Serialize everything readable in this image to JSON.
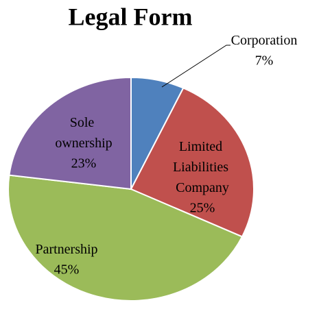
{
  "chart_data": {
    "type": "pie",
    "title": "Legal Form",
    "categories": [
      "Corporation",
      "Limited Liabilities Company",
      "Partnership",
      "Sole ownership"
    ],
    "values": [
      7,
      25,
      45,
      23
    ],
    "value_labels": [
      "7%",
      "25%",
      "45%",
      "23%"
    ],
    "colors": [
      "#4f81bd",
      "#c0504d",
      "#9bbb59",
      "#8064a2"
    ]
  }
}
